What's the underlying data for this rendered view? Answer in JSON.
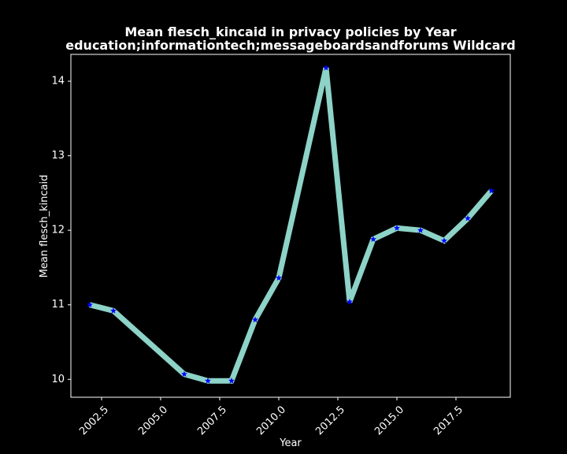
{
  "chart_data": {
    "type": "line",
    "title": "Mean flesch_kincaid in privacy policies by Year",
    "subtitle": "education;informationtech;messageboardsandforums Wildcard",
    "xlabel": "Year",
    "ylabel": "Mean flesch_kincaid",
    "xlim": [
      2001.2,
      2019.8
    ],
    "ylim": [
      9.76,
      14.36
    ],
    "x_ticks": [
      2002.5,
      2005.0,
      2007.5,
      2010.0,
      2012.5,
      2015.0,
      2017.5
    ],
    "x_tick_labels": [
      "2002.5",
      "2005.0",
      "2007.5",
      "2010.0",
      "2012.5",
      "2015.0",
      "2017.5"
    ],
    "y_ticks": [
      10,
      11,
      12,
      13,
      14
    ],
    "y_tick_labels": [
      "10",
      "11",
      "12",
      "13",
      "14"
    ],
    "grid": false,
    "series": [
      {
        "x": [
          2002,
          2003,
          2006,
          2007,
          2008,
          2009,
          2010,
          2012,
          2013,
          2014,
          2015,
          2016,
          2017,
          2018,
          2019
        ],
        "values": [
          11.0,
          10.92,
          10.07,
          9.98,
          9.98,
          10.8,
          11.36,
          14.18,
          11.04,
          11.88,
          12.03,
          12.0,
          11.86,
          12.16,
          12.53
        ],
        "line_color": "#8dd3c7",
        "marker_color": "#0000ff",
        "marker": "star"
      }
    ],
    "colors": {
      "background": "#000000",
      "foreground": "#ffffff"
    }
  }
}
